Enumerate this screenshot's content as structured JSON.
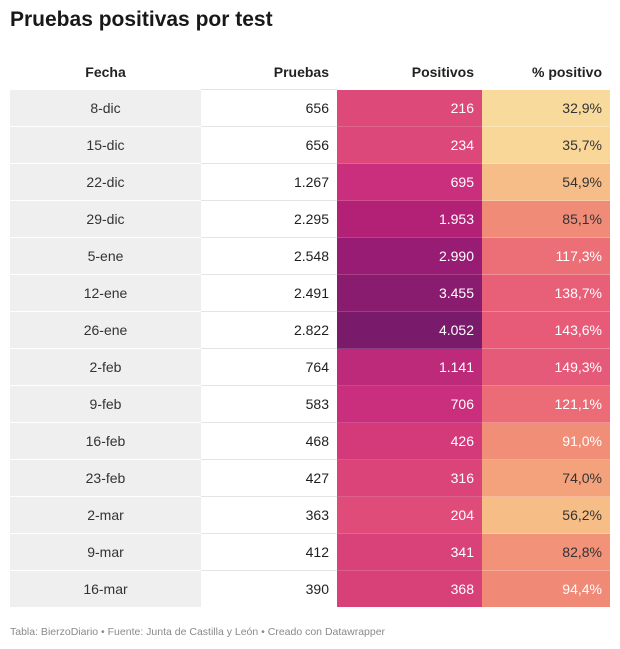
{
  "title": "Pruebas positivas por test",
  "headers": {
    "fecha": "Fecha",
    "pruebas": "Pruebas",
    "positivos": "Positivos",
    "pct": "% positivo"
  },
  "rows": [
    {
      "fecha": "8-dic",
      "pruebas": "656",
      "positivos": "216",
      "pct": "32,9%"
    },
    {
      "fecha": "15-dic",
      "pruebas": "656",
      "positivos": "234",
      "pct": "35,7%"
    },
    {
      "fecha": "22-dic",
      "pruebas": "1.267",
      "positivos": "695",
      "pct": "54,9%"
    },
    {
      "fecha": "29-dic",
      "pruebas": "2.295",
      "positivos": "1.953",
      "pct": "85,1%"
    },
    {
      "fecha": "5-ene",
      "pruebas": "2.548",
      "positivos": "2.990",
      "pct": "117,3%"
    },
    {
      "fecha": "12-ene",
      "pruebas": "2.491",
      "positivos": "3.455",
      "pct": "138,7%"
    },
    {
      "fecha": "26-ene",
      "pruebas": "2.822",
      "positivos": "4.052",
      "pct": "143,6%"
    },
    {
      "fecha": "2-feb",
      "pruebas": "764",
      "positivos": "1.141",
      "pct": "149,3%"
    },
    {
      "fecha": "9-feb",
      "pruebas": "583",
      "positivos": "706",
      "pct": "121,1%"
    },
    {
      "fecha": "16-feb",
      "pruebas": "468",
      "positivos": "426",
      "pct": "91,0%"
    },
    {
      "fecha": "23-feb",
      "pruebas": "427",
      "positivos": "316",
      "pct": "74,0%"
    },
    {
      "fecha": "2-mar",
      "pruebas": "363",
      "positivos": "204",
      "pct": "56,2%"
    },
    {
      "fecha": "9-mar",
      "pruebas": "412",
      "positivos": "341",
      "pct": "82,8%"
    },
    {
      "fecha": "16-mar",
      "pruebas": "390",
      "positivos": "368",
      "pct": "94,4%"
    }
  ],
  "colors": {
    "positivos": [
      "#dd4a7a",
      "#dc4879",
      "#c92f7c",
      "#b32177",
      "#991c74",
      "#8a1c70",
      "#7a1a6b",
      "#be2a7a",
      "#c92f7c",
      "#d43a7a",
      "#da4479",
      "#df4c7a",
      "#d84278",
      "#d74178"
    ],
    "pct": [
      "#f8da9c",
      "#f8d798",
      "#f6bd88",
      "#f08b77",
      "#ec6e76",
      "#e85f78",
      "#e75b79",
      "#e65a79",
      "#eb6b77",
      "#f18e77",
      "#f4a27c",
      "#f6bd87",
      "#f19279",
      "#f08a77"
    ],
    "pct_text": [
      "light",
      "light",
      "light",
      "light",
      "white",
      "white",
      "white",
      "white",
      "white",
      "white",
      "light",
      "light",
      "light",
      "white"
    ]
  },
  "footer": "Tabla: BierzoDiario • Fuente: Junta de Castilla y León • Creado con Datawrapper"
}
